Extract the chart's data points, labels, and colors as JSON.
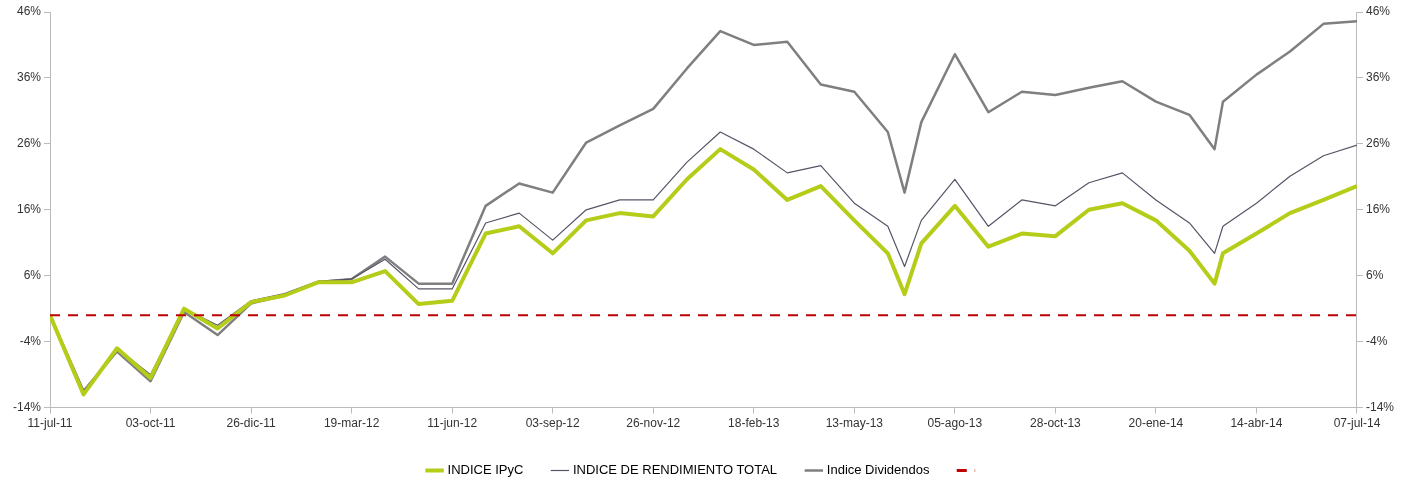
{
  "chart_data": {
    "type": "line",
    "x": [
      "2011-07-11",
      "2011-08-08",
      "2011-09-05",
      "2011-10-03",
      "2011-10-31",
      "2011-11-28",
      "2011-12-26",
      "2012-01-23",
      "2012-02-20",
      "2012-03-19",
      "2012-04-16",
      "2012-05-14",
      "2012-06-11",
      "2012-07-09",
      "2012-08-06",
      "2012-09-03",
      "2012-10-01",
      "2012-10-29",
      "2012-11-26",
      "2012-12-24",
      "2013-01-21",
      "2013-02-18",
      "2013-03-18",
      "2013-04-15",
      "2013-05-13",
      "2013-06-10",
      "2013-06-24",
      "2013-07-08",
      "2013-08-05",
      "2013-09-02",
      "2013-09-30",
      "2013-10-28",
      "2013-11-25",
      "2013-12-23",
      "2014-01-20",
      "2014-02-17",
      "2014-03-10",
      "2014-03-17",
      "2014-04-14",
      "2014-05-12",
      "2014-06-09",
      "2014-07-07"
    ],
    "series": [
      {
        "name": "INDICE IPyC",
        "color": "#b5cc18",
        "values": [
          0,
          -12,
          -5,
          -9.5,
          1,
          -2,
          2,
          3,
          5,
          5,
          6.7,
          1.7,
          2.2,
          12.4,
          13.5,
          9.4,
          14.4,
          15.5,
          15,
          20.6,
          25.2,
          22.1,
          17.5,
          19.6,
          14.4,
          9.4,
          3.2,
          10.9,
          16.6,
          10.4,
          12.4,
          12,
          16,
          17,
          14.4,
          9.8,
          4.8,
          9.4,
          12.4,
          15.5,
          17.5,
          19.6
        ]
      },
      {
        "name": "INDICE DE RENDIMIENTO TOTAL",
        "color": "#555566",
        "values": [
          0,
          -11.5,
          -5,
          -9,
          1,
          -1.5,
          2.2,
          3.3,
          5.2,
          5.5,
          8.5,
          4,
          4,
          14,
          15.5,
          11.4,
          16,
          17.5,
          17.5,
          23.2,
          27.8,
          25.2,
          21.6,
          22.7,
          17,
          13.5,
          7.4,
          14.4,
          20.6,
          13.5,
          17.5,
          16.6,
          20.1,
          21.6,
          17.5,
          14,
          9.4,
          13.5,
          17,
          21.1,
          24.2,
          25.8
        ]
      },
      {
        "name": "Indice Dividendos",
        "color": "#7f7f7f",
        "values": [
          0,
          -11.5,
          -5.5,
          -10,
          0.5,
          -3,
          1.8,
          3,
          5,
          5.5,
          8.9,
          4.8,
          4.8,
          16.6,
          20,
          18.6,
          26.2,
          28.8,
          31.3,
          37.4,
          43.1,
          41,
          41.5,
          35,
          33.9,
          27.8,
          18.6,
          29.3,
          39.6,
          30.8,
          33.9,
          33.4,
          34.5,
          35.5,
          32.4,
          30.4,
          25.2,
          32.4,
          36.5,
          40,
          44.2,
          44.6
        ]
      }
    ],
    "xlim": [
      "2011-07-11",
      "2014-07-07"
    ],
    "xticks": [
      {
        "value": "2011-07-11",
        "label": "11-jul-11"
      },
      {
        "value": "2011-10-03",
        "label": "03-oct-11"
      },
      {
        "value": "2011-12-26",
        "label": "26-dic-11"
      },
      {
        "value": "2012-03-19",
        "label": "19-mar-12"
      },
      {
        "value": "2012-06-11",
        "label": "11-jun-12"
      },
      {
        "value": "2012-09-03",
        "label": "03-sep-12"
      },
      {
        "value": "2012-11-26",
        "label": "26-nov-12"
      },
      {
        "value": "2013-02-18",
        "label": "18-feb-13"
      },
      {
        "value": "2013-05-13",
        "label": "13-may-13"
      },
      {
        "value": "2013-08-05",
        "label": "05-ago-13"
      },
      {
        "value": "2013-10-28",
        "label": "28-oct-13"
      },
      {
        "value": "2014-01-20",
        "label": "20-ene-14"
      },
      {
        "value": "2014-04-14",
        "label": "14-abr-14"
      },
      {
        "value": "2014-07-07",
        "label": "07-jul-14"
      }
    ],
    "ylim": [
      -14,
      46
    ],
    "yticks": [
      {
        "value": -14,
        "label": "-14%"
      },
      {
        "value": -4,
        "label": "-4%"
      },
      {
        "value": 6,
        "label": "6%"
      },
      {
        "value": 16,
        "label": "16%"
      },
      {
        "value": 26,
        "label": "26%"
      },
      {
        "value": 36,
        "label": "36%"
      },
      {
        "value": 46,
        "label": "46%"
      }
    ],
    "y2lim": [
      -14,
      46
    ],
    "y2ticks": [
      {
        "value": -14,
        "label": "-14%"
      },
      {
        "value": -4,
        "label": "-4%"
      },
      {
        "value": 6,
        "label": "6%"
      },
      {
        "value": 16,
        "label": "16%"
      },
      {
        "value": 26,
        "label": "26%"
      },
      {
        "value": 36,
        "label": "36%"
      },
      {
        "value": 46,
        "label": "46%"
      }
    ],
    "ref_lines": [
      {
        "axis": "y",
        "value": 0,
        "color": "#c00000",
        "line_style": "dashed"
      }
    ],
    "grid": false,
    "legend": "bottom",
    "marker": "none"
  }
}
